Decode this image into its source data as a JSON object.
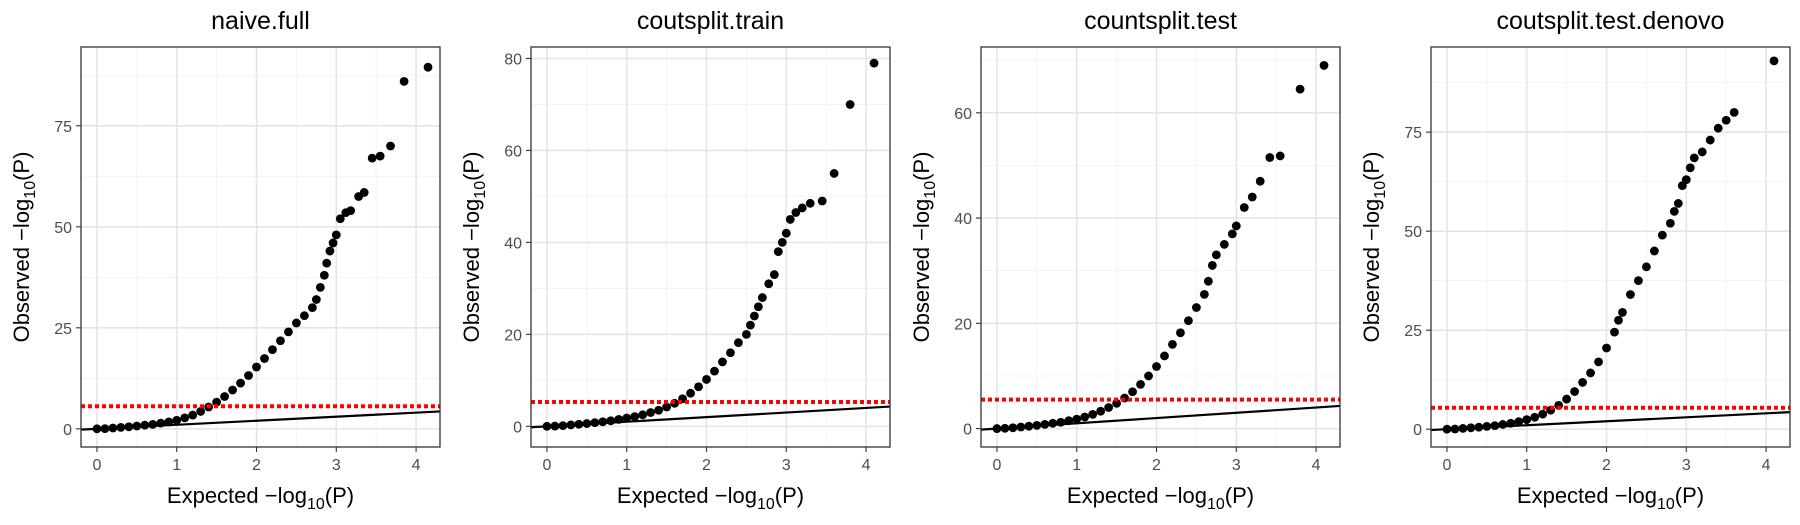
{
  "figure": {
    "type": "qq-plot-grid",
    "point_color": "#000000",
    "threshold_color": "#ff0000",
    "diagonal_color": "#000000"
  },
  "chart_data": [
    {
      "type": "scatter",
      "title": "naive.full",
      "xlabel": "Expected",
      "ylabel": "Observed",
      "xlim": [
        -0.2,
        4.3
      ],
      "ylim": [
        -4.5,
        94.5
      ],
      "xticks": [
        0,
        1,
        2,
        3,
        4
      ],
      "yticks": [
        0,
        25,
        50,
        75
      ],
      "threshold": 5.6,
      "diagonal": "y = x",
      "grid": true,
      "points": [
        [
          0,
          0
        ],
        [
          0.1,
          0.05
        ],
        [
          0.2,
          0.2
        ],
        [
          0.3,
          0.35
        ],
        [
          0.4,
          0.5
        ],
        [
          0.5,
          0.7
        ],
        [
          0.6,
          0.9
        ],
        [
          0.7,
          1.1
        ],
        [
          0.8,
          1.4
        ],
        [
          0.9,
          1.7
        ],
        [
          1.0,
          2.1
        ],
        [
          1.1,
          2.7
        ],
        [
          1.2,
          3.4
        ],
        [
          1.3,
          4.3
        ],
        [
          1.4,
          5.4
        ],
        [
          1.5,
          6.6
        ],
        [
          1.6,
          8.0
        ],
        [
          1.7,
          9.6
        ],
        [
          1.8,
          11.3
        ],
        [
          1.9,
          13.2
        ],
        [
          2.0,
          15.3
        ],
        [
          2.1,
          17.4
        ],
        [
          2.2,
          19.6
        ],
        [
          2.3,
          21.8
        ],
        [
          2.4,
          24.0
        ],
        [
          2.5,
          26.2
        ],
        [
          2.6,
          28.0
        ],
        [
          2.7,
          30.0
        ],
        [
          2.75,
          32.0
        ],
        [
          2.8,
          35.0
        ],
        [
          2.85,
          38.0
        ],
        [
          2.88,
          41.0
        ],
        [
          2.92,
          44.0
        ],
        [
          2.96,
          46.0
        ],
        [
          3.0,
          48.0
        ],
        [
          3.05,
          52.0
        ],
        [
          3.12,
          53.5
        ],
        [
          3.18,
          54.0
        ],
        [
          3.28,
          57.5
        ],
        [
          3.35,
          58.5
        ],
        [
          3.45,
          67.0
        ],
        [
          3.55,
          67.5
        ],
        [
          3.68,
          70.0
        ],
        [
          3.85,
          86.0
        ],
        [
          4.15,
          89.5
        ]
      ]
    },
    {
      "type": "scatter",
      "title": "coutsplit.train",
      "xlabel": "Expected",
      "ylabel": "Observed",
      "xlim": [
        -0.2,
        4.3
      ],
      "ylim": [
        -4.5,
        82.5
      ],
      "xticks": [
        0,
        1,
        2,
        3,
        4
      ],
      "yticks": [
        0,
        20,
        40,
        60,
        80
      ],
      "threshold": 5.3,
      "diagonal": "y = x",
      "grid": true,
      "points": [
        [
          0,
          0
        ],
        [
          0.1,
          0.05
        ],
        [
          0.2,
          0.15
        ],
        [
          0.3,
          0.3
        ],
        [
          0.4,
          0.45
        ],
        [
          0.5,
          0.6
        ],
        [
          0.6,
          0.8
        ],
        [
          0.7,
          1.0
        ],
        [
          0.8,
          1.2
        ],
        [
          0.9,
          1.5
        ],
        [
          1.0,
          1.8
        ],
        [
          1.1,
          2.1
        ],
        [
          1.2,
          2.5
        ],
        [
          1.3,
          3.0
        ],
        [
          1.4,
          3.5
        ],
        [
          1.5,
          4.2
        ],
        [
          1.6,
          5.0
        ],
        [
          1.7,
          6.0
        ],
        [
          1.8,
          7.2
        ],
        [
          1.9,
          8.6
        ],
        [
          2.0,
          10.2
        ],
        [
          2.1,
          12.0
        ],
        [
          2.2,
          14.0
        ],
        [
          2.3,
          16.0
        ],
        [
          2.4,
          18.2
        ],
        [
          2.5,
          20.0
        ],
        [
          2.55,
          22.0
        ],
        [
          2.6,
          24.0
        ],
        [
          2.65,
          26.0
        ],
        [
          2.7,
          28.0
        ],
        [
          2.78,
          31.0
        ],
        [
          2.85,
          33.0
        ],
        [
          2.9,
          38.0
        ],
        [
          2.95,
          40.0
        ],
        [
          3.0,
          42.0
        ],
        [
          3.05,
          45.0
        ],
        [
          3.12,
          46.5
        ],
        [
          3.2,
          47.5
        ],
        [
          3.3,
          48.5
        ],
        [
          3.45,
          49.0
        ],
        [
          3.6,
          55.0
        ],
        [
          3.8,
          70.0
        ],
        [
          4.1,
          79.0
        ]
      ]
    },
    {
      "type": "scatter",
      "title": "countsplit.test",
      "xlabel": "Expected",
      "ylabel": "Observed",
      "xlim": [
        -0.2,
        4.3
      ],
      "ylim": [
        -3.5,
        72.5
      ],
      "xticks": [
        0,
        1,
        2,
        3,
        4
      ],
      "yticks": [
        0,
        20,
        40,
        60
      ],
      "threshold": 5.5,
      "diagonal": "y = x",
      "grid": true,
      "points": [
        [
          0,
          0
        ],
        [
          0.1,
          0.05
        ],
        [
          0.2,
          0.15
        ],
        [
          0.3,
          0.3
        ],
        [
          0.4,
          0.45
        ],
        [
          0.5,
          0.6
        ],
        [
          0.6,
          0.8
        ],
        [
          0.7,
          1.0
        ],
        [
          0.8,
          1.2
        ],
        [
          0.9,
          1.5
        ],
        [
          1.0,
          1.8
        ],
        [
          1.1,
          2.2
        ],
        [
          1.2,
          2.7
        ],
        [
          1.3,
          3.3
        ],
        [
          1.4,
          4.0
        ],
        [
          1.5,
          4.8
        ],
        [
          1.6,
          5.8
        ],
        [
          1.7,
          7.0
        ],
        [
          1.8,
          8.4
        ],
        [
          1.9,
          10.0
        ],
        [
          2.0,
          11.8
        ],
        [
          2.1,
          13.8
        ],
        [
          2.2,
          16.0
        ],
        [
          2.3,
          18.2
        ],
        [
          2.4,
          20.5
        ],
        [
          2.5,
          23.0
        ],
        [
          2.6,
          25.5
        ],
        [
          2.65,
          28.0
        ],
        [
          2.7,
          31.0
        ],
        [
          2.75,
          33.0
        ],
        [
          2.85,
          35.0
        ],
        [
          2.95,
          37.0
        ],
        [
          3.0,
          38.5
        ],
        [
          3.1,
          42.0
        ],
        [
          3.2,
          44.0
        ],
        [
          3.3,
          47.0
        ],
        [
          3.42,
          51.5
        ],
        [
          3.55,
          51.8
        ],
        [
          3.8,
          64.5
        ],
        [
          4.1,
          69.0
        ]
      ]
    },
    {
      "type": "scatter",
      "title": "coutsplit.test.denovo",
      "xlabel": "Expected",
      "ylabel": "Observed",
      "xlim": [
        -0.2,
        4.3
      ],
      "ylim": [
        -4.5,
        96.5
      ],
      "xticks": [
        0,
        1,
        2,
        3,
        4
      ],
      "yticks": [
        0,
        25,
        50,
        75
      ],
      "threshold": 5.4,
      "diagonal": "y = x",
      "grid": true,
      "points": [
        [
          0,
          0
        ],
        [
          0.1,
          0.05
        ],
        [
          0.2,
          0.2
        ],
        [
          0.3,
          0.35
        ],
        [
          0.4,
          0.5
        ],
        [
          0.5,
          0.7
        ],
        [
          0.6,
          0.9
        ],
        [
          0.7,
          1.2
        ],
        [
          0.8,
          1.5
        ],
        [
          0.9,
          1.9
        ],
        [
          1.0,
          2.4
        ],
        [
          1.1,
          3.0
        ],
        [
          1.2,
          3.8
        ],
        [
          1.3,
          4.8
        ],
        [
          1.4,
          6.0
        ],
        [
          1.5,
          7.6
        ],
        [
          1.6,
          9.5
        ],
        [
          1.7,
          11.8
        ],
        [
          1.8,
          14.2
        ],
        [
          1.9,
          17.0
        ],
        [
          2.0,
          20.5
        ],
        [
          2.1,
          24.5
        ],
        [
          2.15,
          27.5
        ],
        [
          2.2,
          29.5
        ],
        [
          2.3,
          34.0
        ],
        [
          2.4,
          37.5
        ],
        [
          2.5,
          41.0
        ],
        [
          2.6,
          45.0
        ],
        [
          2.7,
          49.0
        ],
        [
          2.8,
          52.0
        ],
        [
          2.85,
          55.0
        ],
        [
          2.9,
          57.0
        ],
        [
          2.95,
          61.5
        ],
        [
          3.0,
          63.0
        ],
        [
          3.05,
          66.0
        ],
        [
          3.1,
          68.5
        ],
        [
          3.2,
          70.0
        ],
        [
          3.3,
          73.0
        ],
        [
          3.4,
          76.0
        ],
        [
          3.5,
          78.0
        ],
        [
          3.6,
          80.0
        ],
        [
          4.1,
          93.0
        ]
      ]
    }
  ]
}
